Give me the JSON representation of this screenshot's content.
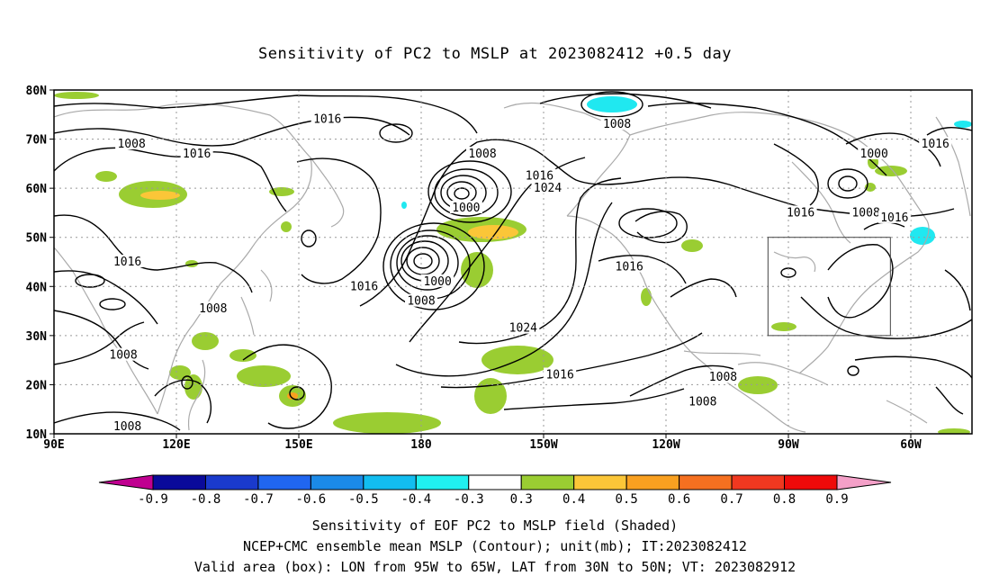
{
  "title": "Sensitivity of PC2 to MSLP at 2023082412 +0.5 day",
  "lat_labels": [
    "80N",
    "70N",
    "60N",
    "50N",
    "40N",
    "30N",
    "20N",
    "10N"
  ],
  "lat_values": [
    80,
    70,
    60,
    50,
    40,
    30,
    20,
    10
  ],
  "lon_labels": [
    "90E",
    "120E",
    "150E",
    "180",
    "150W",
    "120W",
    "90W",
    "60W"
  ],
  "lon_values": [
    90,
    120,
    150,
    180,
    210,
    240,
    270,
    300
  ],
  "map_extent": {
    "lon_min": 90,
    "lon_max": 315,
    "lat_min": 10,
    "lat_max": 80
  },
  "valid_box": {
    "lon_min": 265,
    "lon_max": 295,
    "lat_min": 30,
    "lat_max": 50
  },
  "contour_labels": [
    {
      "text": "1016",
      "lon": 157,
      "lat": 74
    },
    {
      "text": "1008",
      "lon": 109,
      "lat": 69
    },
    {
      "text": "1016",
      "lon": 125,
      "lat": 67
    },
    {
      "text": "1008",
      "lon": 195,
      "lat": 67
    },
    {
      "text": "1008",
      "lon": 228,
      "lat": 73
    },
    {
      "text": "1000",
      "lon": 291,
      "lat": 67
    },
    {
      "text": "1016",
      "lon": 306,
      "lat": 69
    },
    {
      "text": "1016",
      "lon": 209,
      "lat": 62.5
    },
    {
      "text": "1024",
      "lon": 211,
      "lat": 60
    },
    {
      "text": "1000",
      "lon": 191,
      "lat": 56
    },
    {
      "text": "1016",
      "lon": 108,
      "lat": 45
    },
    {
      "text": "1016",
      "lon": 166,
      "lat": 40
    },
    {
      "text": "1000",
      "lon": 184,
      "lat": 41
    },
    {
      "text": "1008",
      "lon": 180,
      "lat": 37
    },
    {
      "text": "1008",
      "lon": 129,
      "lat": 35.5
    },
    {
      "text": "1024",
      "lon": 205,
      "lat": 31.5
    },
    {
      "text": "1008",
      "lon": 107,
      "lat": 26
    },
    {
      "text": "1016",
      "lon": 214,
      "lat": 22
    },
    {
      "text": "1008",
      "lon": 254,
      "lat": 21.5
    },
    {
      "text": "1008",
      "lon": 249,
      "lat": 16.5
    },
    {
      "text": "1008",
      "lon": 108,
      "lat": 11.5
    },
    {
      "text": "1016",
      "lon": 273,
      "lat": 55
    },
    {
      "text": "1008",
      "lon": 289,
      "lat": 55
    },
    {
      "text": "1016",
      "lon": 296,
      "lat": 54
    },
    {
      "text": "1016",
      "lon": 231,
      "lat": 44
    }
  ],
  "colorbar": {
    "labels": [
      "-0.9",
      "-0.8",
      "-0.7",
      "-0.6",
      "-0.5",
      "-0.4",
      "-0.3",
      "0.3",
      "0.4",
      "0.5",
      "0.6",
      "0.7",
      "0.8",
      "0.9"
    ],
    "colors": [
      "#c00090",
      "#0a0a9a",
      "#1a3acc",
      "#2066f0",
      "#1b8ae8",
      "#12bdf0",
      "#20f0f0",
      "#ffffff",
      "#9acd32",
      "#fbc638",
      "#f9a020",
      "#f57020",
      "#f03820",
      "#ee0a0a",
      "#f4a0c8"
    ]
  },
  "colors": {
    "positive_shade": "#9acd32",
    "yellow_shade": "#fbc638",
    "orange_shade": "#f9a020",
    "cyan_shade": "#20e8f0",
    "coast": "#aaaaaa"
  },
  "footer": {
    "line1": "Sensitivity of EOF PC2 to MSLP field (Shaded)",
    "line2": "NCEP+CMC ensemble mean MSLP (Contour); unit(mb); IT:2023082412",
    "line3": "Valid area (box): LON from 95W to 65W, LAT from 30N to 50N; VT: 2023082912"
  }
}
